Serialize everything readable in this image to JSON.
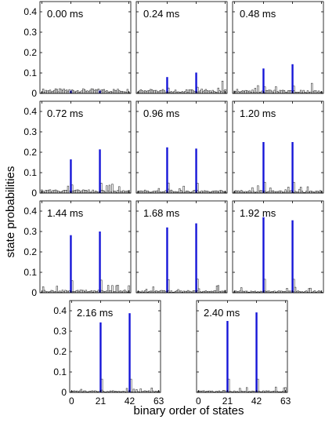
{
  "figure": {
    "ylabel": "state probabilities",
    "xlabel": "binary order of states"
  },
  "chart_data": {
    "type": "bar",
    "x_range": [
      0,
      63
    ],
    "x_ticks": [
      "0",
      "21",
      "42",
      "63"
    ],
    "ylim": [
      0,
      0.45
    ],
    "y_ticks": [
      "0",
      "0.1",
      "0.2",
      "0.3",
      "0.4"
    ],
    "grid": false,
    "highlight_color": "#1414d8",
    "highlight_states": [
      21,
      42
    ],
    "panels": [
      {
        "title": "0.00 ms",
        "highlight_values": [
          0.013,
          0.013
        ],
        "baseline": 0.014
      },
      {
        "title": "0.24 ms",
        "highlight_values": [
          0.08,
          0.102
        ],
        "baseline": 0.012
      },
      {
        "title": "0.48 ms",
        "highlight_values": [
          0.122,
          0.143
        ],
        "baseline": 0.01
      },
      {
        "title": "0.72 ms",
        "highlight_values": [
          0.165,
          0.214
        ],
        "baseline": 0.01
      },
      {
        "title": "0.96 ms",
        "highlight_values": [
          0.224,
          0.218
        ],
        "baseline": 0.009
      },
      {
        "title": "1.20 ms",
        "highlight_values": [
          0.25,
          0.25
        ],
        "baseline": 0.008
      },
      {
        "title": "1.44 ms",
        "highlight_values": [
          0.282,
          0.3
        ],
        "baseline": 0.008
      },
      {
        "title": "1.68 ms",
        "highlight_values": [
          0.32,
          0.34
        ],
        "baseline": 0.007
      },
      {
        "title": "1.92 ms",
        "highlight_values": [
          0.37,
          0.355
        ],
        "baseline": 0.006
      },
      {
        "title": "2.16 ms",
        "highlight_values": [
          0.343,
          0.388
        ],
        "baseline": 0.005
      },
      {
        "title": "2.40 ms",
        "highlight_values": [
          0.35,
          0.392
        ],
        "baseline": 0.005
      }
    ]
  }
}
